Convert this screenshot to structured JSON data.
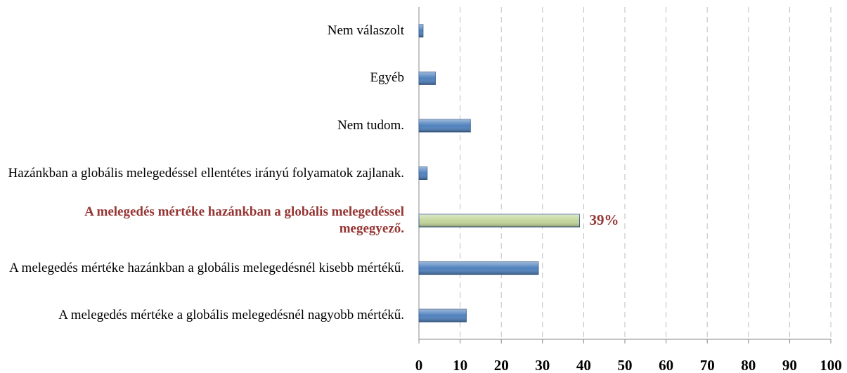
{
  "chart_data": {
    "type": "barh",
    "categories": [
      "Nem válaszolt",
      "Egyéb",
      "Nem tudom.",
      "Hazánkban a globális melegedéssel ellentétes irányú folyamatok zajlanak.",
      "A melegedés mértéke hazánkban a globális melegedéssel megegyező.",
      "A melegedés mértéke hazánkban a globális melegedésnél kisebb mértékű.",
      "A melegedés mértéke a globális melegedésnél nagyobb mértékű."
    ],
    "values": [
      1,
      4,
      12.5,
      2,
      39,
      29,
      11.5
    ],
    "value_labels": [
      null,
      null,
      null,
      null,
      "39%",
      null,
      null
    ],
    "colors": [
      "#4f81bd",
      "#4f81bd",
      "#4f81bd",
      "#4f81bd",
      "#c3d69b",
      "#4f81bd",
      "#4f81bd"
    ],
    "xlim": [
      0,
      100
    ],
    "xticks": [
      0,
      10,
      20,
      30,
      40,
      50,
      60,
      70,
      80,
      90,
      100
    ],
    "grid": true
  }
}
